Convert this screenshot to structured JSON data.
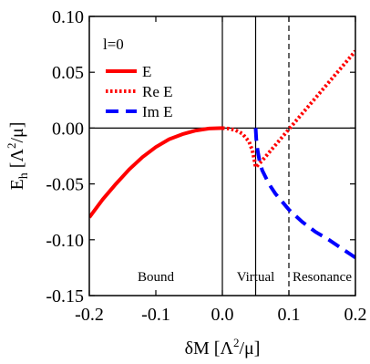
{
  "chart_data": {
    "type": "line",
    "annotation": "l=0",
    "xlabel": {
      "main": "δM [Λ",
      "sup": "2",
      "tail": "/μ]"
    },
    "ylabel": {
      "main": "E",
      "sub": "h",
      "rest": " [Λ",
      "sup": "2",
      "tail": "/μ]"
    },
    "xlim": [
      -0.2,
      0.2
    ],
    "ylim": [
      -0.15,
      0.1
    ],
    "x_ticks": [
      -0.2,
      -0.1,
      0.0,
      0.1,
      0.2
    ],
    "x_tick_labels": [
      "-0.2",
      "-0.1",
      "0.0",
      "0.1",
      "0.2"
    ],
    "y_ticks": [
      -0.15,
      -0.1,
      -0.05,
      0.0,
      0.05,
      0.1
    ],
    "y_tick_labels": [
      "-0.15",
      "-0.10",
      "-0.05",
      "0.00",
      "0.05",
      "0.10"
    ],
    "vertical_lines": [
      {
        "x": 0.0,
        "style": "solid"
      },
      {
        "x": 0.05,
        "style": "solid"
      },
      {
        "x": 0.1,
        "style": "dashed"
      }
    ],
    "horizontal_lines": [
      {
        "y": 0.0,
        "style": "solid"
      }
    ],
    "regions": [
      {
        "label": "Bound",
        "x_center": -0.1,
        "y": -0.133
      },
      {
        "label": "Virtual",
        "x_center": 0.05,
        "y": -0.133
      },
      {
        "label": "Resonance",
        "x_center": 0.15,
        "y": -0.133
      }
    ],
    "legend_position": "top-left",
    "series": [
      {
        "name": "E",
        "color": "#ff0000",
        "style": "solid",
        "x": [
          -0.2,
          -0.18,
          -0.16,
          -0.14,
          -0.12,
          -0.1,
          -0.08,
          -0.06,
          -0.04,
          -0.02,
          0.0
        ],
        "y": [
          -0.08,
          -0.064,
          -0.05,
          -0.037,
          -0.026,
          -0.017,
          -0.01,
          -0.0055,
          -0.0022,
          -0.0004,
          0.0
        ]
      },
      {
        "name": "Re E",
        "color": "#ff0000",
        "style": "dotted",
        "x": [
          0.0,
          0.01,
          0.02,
          0.03,
          0.04,
          0.045,
          0.048,
          0.05,
          0.052,
          0.055,
          0.06,
          0.07,
          0.08,
          0.09,
          0.1,
          0.12,
          0.14,
          0.16,
          0.18,
          0.2
        ],
        "y": [
          0.0,
          -0.0005,
          -0.002,
          -0.005,
          -0.012,
          -0.02,
          -0.028,
          -0.035,
          -0.034,
          -0.032,
          -0.029,
          -0.022,
          -0.015,
          -0.008,
          -0.001,
          0.013,
          0.027,
          0.041,
          0.055,
          0.069
        ]
      },
      {
        "name": "Im E",
        "color": "#0000ff",
        "style": "dashed",
        "x": [
          0.05,
          0.051,
          0.053,
          0.056,
          0.06,
          0.07,
          0.08,
          0.09,
          0.1,
          0.12,
          0.14,
          0.16,
          0.18,
          0.2
        ],
        "y": [
          0.0,
          -0.01,
          -0.02,
          -0.03,
          -0.038,
          -0.05,
          -0.059,
          -0.066,
          -0.073,
          -0.084,
          -0.093,
          -0.1,
          -0.108,
          -0.116
        ]
      }
    ]
  }
}
